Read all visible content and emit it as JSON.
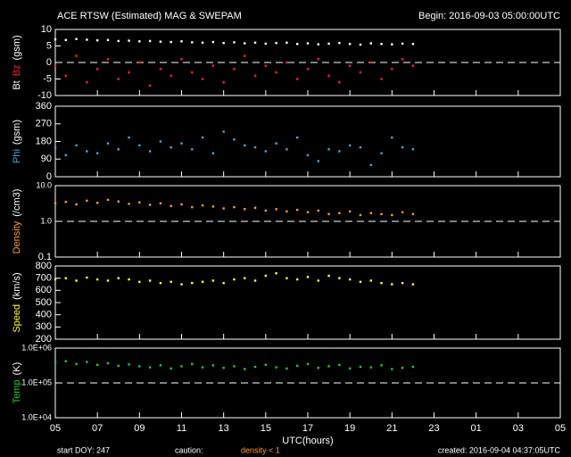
{
  "header": {
    "title": "ACE RTSW (Estimated) MAG & SWEPAM",
    "begin": "Begin: 2016-09-03 05:00:00UTC"
  },
  "footer": {
    "start": "start DOY: 247",
    "caution": "caution:",
    "density_note": "density < 1",
    "created": "created: 2016-09-04 04:37:05UTC"
  },
  "x": [
    0,
    0.5,
    1,
    1.5,
    2,
    2.5,
    3,
    3.5,
    4,
    4.5,
    5,
    5.5,
    6,
    6.5,
    7,
    7.5,
    8,
    8.5,
    9,
    9.5,
    10,
    10.5,
    11,
    11.5,
    12,
    12.5,
    13,
    13.5,
    14,
    14.5,
    15,
    15.5,
    16,
    16.5,
    17
  ],
  "xlim": [
    0,
    24
  ],
  "xticks": [
    {
      "value": 0,
      "label": "05"
    },
    {
      "value": 2,
      "label": "07"
    },
    {
      "value": 4,
      "label": "09"
    },
    {
      "value": 6,
      "label": "11"
    },
    {
      "value": 8,
      "label": "13"
    },
    {
      "value": 10,
      "label": "15"
    },
    {
      "value": 12,
      "label": "17"
    },
    {
      "value": 14,
      "label": "19"
    },
    {
      "value": 16,
      "label": "21"
    },
    {
      "value": 18,
      "label": "23"
    },
    {
      "value": 20,
      "label": "01"
    },
    {
      "value": 22,
      "label": "03"
    },
    {
      "value": 24,
      "label": "05"
    }
  ],
  "xlabel": "UTC(hours)",
  "chart_data": [
    {
      "type": "scatter",
      "unit": "(gsm)",
      "ylim": [
        -10,
        10
      ],
      "yticks": [
        -10,
        -5,
        0,
        5,
        10
      ],
      "reference": 0,
      "series": [
        {
          "name": "Bt",
          "color": "#ffffff",
          "values": [
            7,
            6.8,
            7.1,
            6.9,
            6.7,
            6.8,
            6.5,
            6.6,
            6.4,
            6.5,
            6.3,
            6.2,
            6.4,
            6.1,
            6.0,
            6.2,
            5.9,
            6.1,
            5.8,
            6.0,
            5.7,
            5.9,
            6.0,
            5.6,
            5.8,
            5.5,
            5.7,
            5.9,
            5.6,
            5.4,
            5.8,
            5.6,
            5.5,
            5.7,
            5.6
          ]
        },
        {
          "name": "Bz",
          "color": "#ff2020",
          "values": [
            -1,
            -4,
            2,
            -6,
            -2,
            1,
            -5,
            -3,
            0,
            -7,
            -2,
            -4,
            1,
            -3,
            -5,
            -1,
            -6,
            -2,
            2,
            -4,
            -1,
            -3,
            0,
            -5,
            -2,
            1,
            -4,
            -6,
            -1,
            -3,
            0,
            -5,
            -2,
            1,
            -1
          ]
        }
      ]
    },
    {
      "type": "scatter",
      "unit": "(gsm)",
      "ylim": [
        0,
        360
      ],
      "yticks": [
        0,
        90,
        180,
        270,
        360
      ],
      "series": [
        {
          "name": "Phi",
          "color": "#3fa9e0",
          "values": [
            150,
            110,
            160,
            130,
            120,
            170,
            140,
            200,
            160,
            130,
            180,
            150,
            170,
            140,
            200,
            120,
            230,
            190,
            160,
            150,
            130,
            170,
            140,
            200,
            110,
            80,
            140,
            130,
            160,
            150,
            60,
            120,
            200,
            150,
            140
          ]
        }
      ]
    },
    {
      "type": "scatter",
      "unit": "(/cm3)",
      "log": true,
      "ylim": [
        0.1,
        10
      ],
      "yticks": [
        0.1,
        {
          "value": 1,
          "label": "1.0"
        },
        {
          "value": 10,
          "label": "10.0"
        }
      ],
      "reference": 1,
      "series": [
        {
          "name": "Density",
          "color": "#ff9933",
          "values": [
            3.2,
            3.5,
            3,
            3.8,
            3.3,
            4,
            3.6,
            3.1,
            3.4,
            2.9,
            3.2,
            2.7,
            3,
            2.5,
            2.8,
            2.6,
            2.3,
            2.5,
            2.2,
            2.4,
            2,
            2.2,
            1.9,
            2.1,
            1.8,
            2,
            1.6,
            1.7,
            1.9,
            1.5,
            1.7,
            1.6,
            1.5,
            1.8,
            1.6
          ]
        }
      ]
    },
    {
      "type": "scatter",
      "unit": "(km/s)",
      "ylim": [
        200,
        800
      ],
      "yticks": [
        200,
        300,
        400,
        500,
        600,
        700,
        800
      ],
      "series": [
        {
          "name": "Speed",
          "color": "#ffff33",
          "values": [
            690,
            700,
            680,
            705,
            690,
            680,
            700,
            690,
            670,
            680,
            660,
            670,
            650,
            660,
            670,
            680,
            660,
            690,
            700,
            680,
            720,
            740,
            700,
            690,
            710,
            680,
            720,
            700,
            690,
            670,
            680,
            660,
            650,
            660,
            650
          ]
        }
      ]
    },
    {
      "type": "scatter",
      "unit": "(K)",
      "log": true,
      "ylim": [
        10000,
        1000000
      ],
      "yticks": [
        {
          "value": 10000,
          "label": "1.0E+04"
        },
        {
          "value": 100000,
          "label": "1.0E+05"
        },
        {
          "value": 1000000,
          "label": "1.0E+06"
        }
      ],
      "reference": 100000,
      "series": [
        {
          "name": "Temp",
          "color": "#22cc22",
          "values": [
            380000,
            420000,
            350000,
            400000,
            330000,
            370000,
            310000,
            340000,
            300000,
            280000,
            320000,
            260000,
            300000,
            350000,
            280000,
            320000,
            270000,
            300000,
            250000,
            290000,
            330000,
            280000,
            260000,
            310000,
            350000,
            270000,
            300000,
            330000,
            260000,
            290000,
            280000,
            320000,
            250000,
            270000,
            290000
          ]
        }
      ]
    }
  ]
}
